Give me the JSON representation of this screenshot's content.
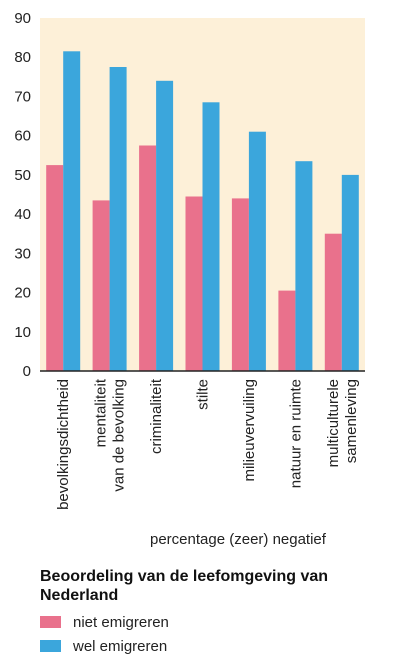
{
  "chart_data": {
    "type": "bar",
    "title": "Beoordeling van de leefomgeving van Nederland",
    "xlabel": "percentage (zeer) negatief",
    "ylabel": "",
    "ylim": [
      0,
      90
    ],
    "yticks": [
      0,
      10,
      20,
      30,
      40,
      50,
      60,
      70,
      80,
      90
    ],
    "grid": false,
    "legend_position": "bottom-left",
    "categories": [
      [
        "bevolkingsdichtheid"
      ],
      [
        "mentaliteit",
        "van de bevolking"
      ],
      [
        "criminaliteit"
      ],
      [
        "stilte"
      ],
      [
        "milieuvervuiling"
      ],
      [
        "natuur en ruimte"
      ],
      [
        "multiculturele",
        "samenleving"
      ]
    ],
    "series": [
      {
        "name": "niet emigreren",
        "color": "#e9718c",
        "values": [
          52.5,
          43.5,
          57.5,
          44.5,
          44,
          20.5,
          35
        ]
      },
      {
        "name": "wel emigreren",
        "color": "#3ba6dc",
        "values": [
          81.5,
          77.5,
          74,
          68.5,
          61,
          53.5,
          50
        ]
      }
    ],
    "background_color": "#fdf0d8"
  }
}
